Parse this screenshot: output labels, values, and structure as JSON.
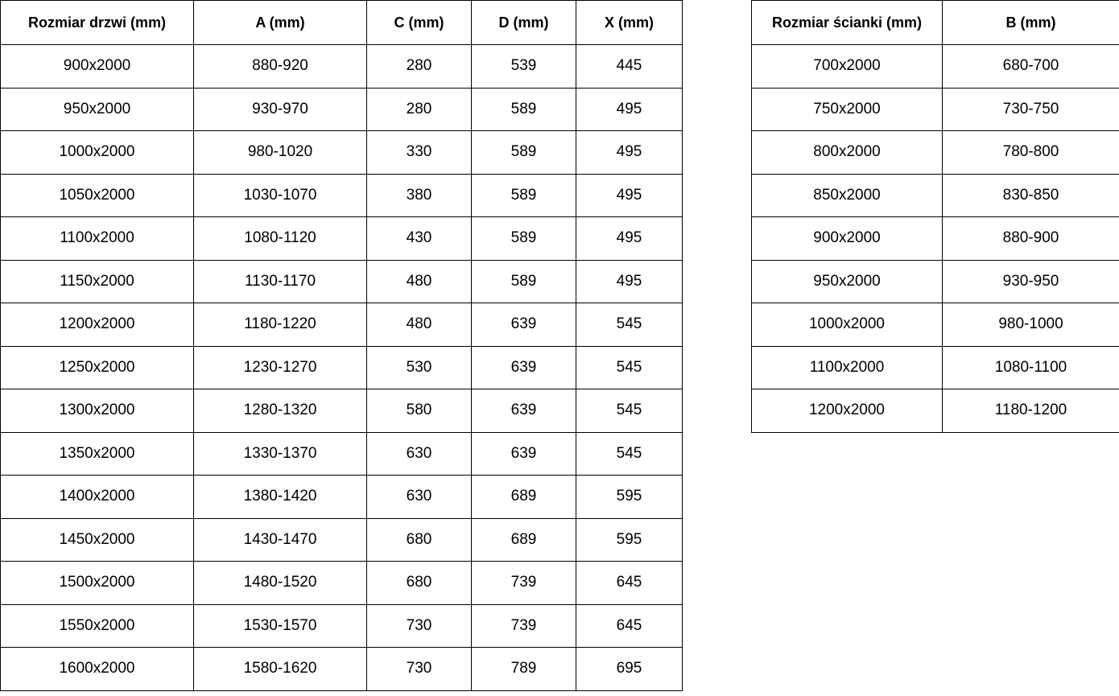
{
  "doors_table": {
    "headers": [
      "Rozmiar drzwi (mm)",
      "A (mm)",
      "C (mm)",
      "D (mm)",
      "X (mm)"
    ],
    "rows": [
      [
        "900x2000",
        "880-920",
        "280",
        "539",
        "445"
      ],
      [
        "950x2000",
        "930-970",
        "280",
        "589",
        "495"
      ],
      [
        "1000x2000",
        "980-1020",
        "330",
        "589",
        "495"
      ],
      [
        "1050x2000",
        "1030-1070",
        "380",
        "589",
        "495"
      ],
      [
        "1100x2000",
        "1080-1120",
        "430",
        "589",
        "495"
      ],
      [
        "1150x2000",
        "1130-1170",
        "480",
        "589",
        "495"
      ],
      [
        "1200x2000",
        "1180-1220",
        "480",
        "639",
        "545"
      ],
      [
        "1250x2000",
        "1230-1270",
        "530",
        "639",
        "545"
      ],
      [
        "1300x2000",
        "1280-1320",
        "580",
        "639",
        "545"
      ],
      [
        "1350x2000",
        "1330-1370",
        "630",
        "639",
        "545"
      ],
      [
        "1400x2000",
        "1380-1420",
        "630",
        "689",
        "595"
      ],
      [
        "1450x2000",
        "1430-1470",
        "680",
        "689",
        "595"
      ],
      [
        "1500x2000",
        "1480-1520",
        "680",
        "739",
        "645"
      ],
      [
        "1550x2000",
        "1530-1570",
        "730",
        "739",
        "645"
      ],
      [
        "1600x2000",
        "1580-1620",
        "730",
        "789",
        "695"
      ]
    ]
  },
  "wall_table": {
    "headers": [
      "Rozmiar ścianki (mm)",
      "B (mm)"
    ],
    "rows": [
      [
        "700x2000",
        "680-700"
      ],
      [
        "750x2000",
        "730-750"
      ],
      [
        "800x2000",
        "780-800"
      ],
      [
        "850x2000",
        "830-850"
      ],
      [
        "900x2000",
        "880-900"
      ],
      [
        "950x2000",
        "930-950"
      ],
      [
        "1000x2000",
        "980-1000"
      ],
      [
        "1100x2000",
        "1080-1100"
      ],
      [
        "1200x2000",
        "1180-1200"
      ]
    ]
  },
  "colors": {
    "border": "#000000",
    "text": "#000000",
    "background": "#ffffff"
  }
}
